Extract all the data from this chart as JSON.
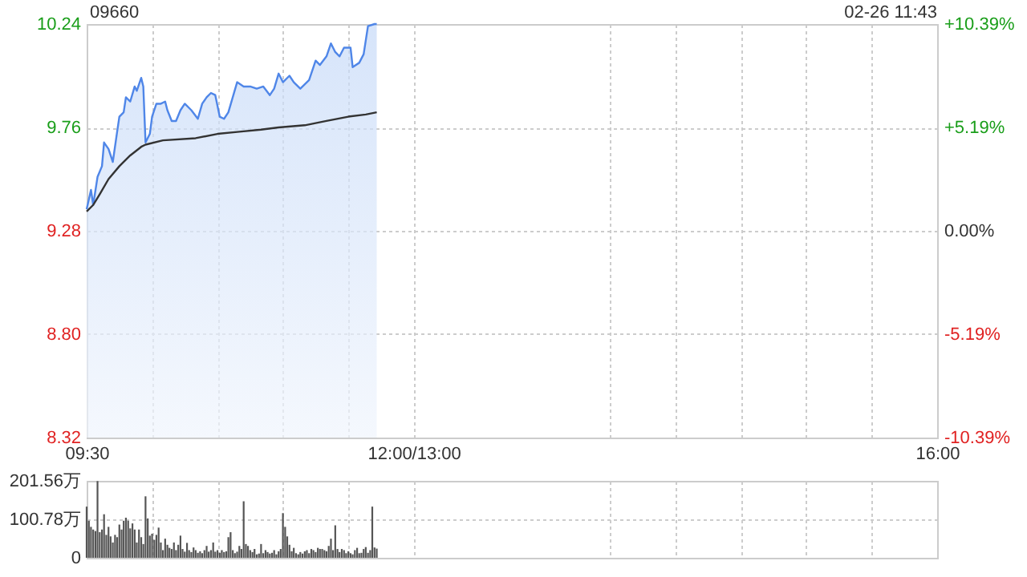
{
  "chart_data": [
    {
      "type": "line",
      "title": "09660",
      "annotations": [
        "02-26 11:43"
      ],
      "xlim": [
        9.5,
        16
      ],
      "xticks": [
        {
          "value": 9.5,
          "label": "09:30"
        },
        {
          "value": 10,
          "label": null
        },
        {
          "value": 10.5,
          "label": null
        },
        {
          "value": 11,
          "label": null
        },
        {
          "value": 11.5,
          "label": null
        },
        {
          "value": 12,
          "label": "12:00/13:00"
        },
        {
          "value": 13.5,
          "label": null
        },
        {
          "value": 14,
          "label": null
        },
        {
          "value": 14.5,
          "label": null
        },
        {
          "value": 15,
          "label": null
        },
        {
          "value": 15.5,
          "label": null
        },
        {
          "value": 16,
          "label": "16:00"
        }
      ],
      "ylim": [
        8.32,
        10.24
      ],
      "yticks": [
        8.32,
        {
          "value": 8.8,
          "label": "8.80"
        },
        9.28,
        9.76,
        10.24
      ],
      "y2lim": [
        -10.39,
        10.39
      ],
      "y2ticks": [
        {
          "value": -10.39,
          "label": "-10.39%"
        },
        {
          "value": -5.19,
          "label": "-5.19%"
        },
        {
          "value": 0,
          "label": "0.00%"
        },
        {
          "value": 5.19,
          "label": "+5.19%"
        },
        {
          "value": 10.39,
          "label": "+10.39%"
        }
      ],
      "grid": true,
      "series": [
        {
          "type": "area",
          "color": "#4f86e8",
          "x": [
            9.5,
            9.533,
            9.55,
            9.583,
            9.617,
            9.633,
            9.667,
            9.7,
            9.733,
            9.75,
            9.783,
            9.8,
            9.833,
            9.867,
            9.883,
            9.917,
            9.933,
            9.95,
            9.983,
            10,
            10.033,
            10.067,
            10.1,
            10.117,
            10.15,
            10.183,
            10.217,
            10.25,
            10.3,
            10.35,
            10.383,
            10.417,
            10.45,
            10.483,
            10.517,
            10.55,
            10.583,
            10.65,
            10.7,
            10.75,
            10.8,
            10.85,
            10.9,
            10.933,
            10.967,
            11,
            11.05,
            11.083,
            11.133,
            11.2,
            11.25,
            11.283,
            11.333,
            11.367,
            11.4,
            11.433,
            11.467,
            11.517,
            11.533,
            11.583,
            11.617,
            11.65,
            11.7,
            11.717
          ],
          "values": [
            9.38,
            9.47,
            9.4,
            9.53,
            9.58,
            9.69,
            9.66,
            9.6,
            9.74,
            9.81,
            9.83,
            9.9,
            9.88,
            9.95,
            9.93,
            9.99,
            9.95,
            9.69,
            9.73,
            9.81,
            9.87,
            9.87,
            9.88,
            9.84,
            9.79,
            9.79,
            9.84,
            9.87,
            9.84,
            9.8,
            9.87,
            9.9,
            9.92,
            9.91,
            9.81,
            9.8,
            9.83,
            9.97,
            9.95,
            9.95,
            9.94,
            9.95,
            9.91,
            9.94,
            10.01,
            9.97,
            10.0,
            9.97,
            9.94,
            9.98,
            10.07,
            10.05,
            10.09,
            10.15,
            10.11,
            10.09,
            10.13,
            10.13,
            10.04,
            10.06,
            10.1,
            10.23,
            10.24,
            10.24
          ]
        },
        {
          "type": "line",
          "color": "#333333",
          "x": [
            9.5,
            9.55,
            9.6,
            9.667,
            9.75,
            9.833,
            9.917,
            9.95,
            10.083,
            10.333,
            10.5,
            10.667,
            10.833,
            10.967,
            11.167,
            11.333,
            11.5,
            11.633,
            11.717
          ],
          "values": [
            9.37,
            9.4,
            9.45,
            9.52,
            9.58,
            9.63,
            9.67,
            9.68,
            9.7,
            9.71,
            9.73,
            9.74,
            9.75,
            9.76,
            9.77,
            9.79,
            9.81,
            9.82,
            9.83
          ]
        }
      ]
    },
    {
      "type": "bar",
      "color": "#555555",
      "tick_labels": "y",
      "grid": true,
      "xlim": [
        9.5,
        16
      ],
      "xticks": [
        9.5,
        10,
        10.5,
        11,
        11.5,
        12,
        13.5,
        14,
        14.5,
        15,
        15.5,
        16
      ],
      "ylim": [
        0,
        201.56
      ],
      "yticks": [
        {
          "value": 0,
          "label": "0"
        },
        {
          "value": 100.78,
          "label": "100.78万"
        },
        {
          "value": 201.56,
          "label": "201.56万"
        }
      ],
      "x": [
        9.5,
        9.517,
        9.533,
        9.55,
        9.567,
        9.583,
        9.6,
        9.617,
        9.633,
        9.65,
        9.667,
        9.683,
        9.7,
        9.717,
        9.733,
        9.75,
        9.767,
        9.783,
        9.8,
        9.817,
        9.833,
        9.85,
        9.867,
        9.883,
        9.9,
        9.917,
        9.933,
        9.95,
        9.967,
        9.983,
        10,
        10.017,
        10.033,
        10.05,
        10.067,
        10.083,
        10.1,
        10.117,
        10.133,
        10.15,
        10.167,
        10.183,
        10.2,
        10.217,
        10.233,
        10.25,
        10.267,
        10.283,
        10.3,
        10.317,
        10.333,
        10.35,
        10.367,
        10.383,
        10.4,
        10.417,
        10.433,
        10.45,
        10.467,
        10.483,
        10.5,
        10.517,
        10.533,
        10.55,
        10.567,
        10.583,
        10.6,
        10.617,
        10.633,
        10.65,
        10.667,
        10.683,
        10.7,
        10.717,
        10.733,
        10.75,
        10.767,
        10.783,
        10.8,
        10.817,
        10.833,
        10.85,
        10.867,
        10.883,
        10.9,
        10.917,
        10.933,
        10.95,
        10.967,
        10.983,
        11,
        11.017,
        11.033,
        11.05,
        11.067,
        11.083,
        11.1,
        11.117,
        11.133,
        11.15,
        11.167,
        11.183,
        11.2,
        11.217,
        11.233,
        11.25,
        11.267,
        11.283,
        11.3,
        11.317,
        11.333,
        11.35,
        11.367,
        11.383,
        11.4,
        11.417,
        11.433,
        11.45,
        11.467,
        11.483,
        11.5,
        11.517,
        11.533,
        11.55,
        11.567,
        11.583,
        11.6,
        11.617,
        11.633,
        11.65,
        11.667,
        11.683,
        11.7,
        11.717
      ],
      "values": [
        134,
        97,
        81,
        74,
        70,
        201,
        67,
        74,
        114,
        60,
        81,
        56,
        40,
        60,
        54,
        87,
        74,
        97,
        105,
        97,
        77,
        90,
        74,
        40,
        74,
        54,
        36,
        161,
        103,
        58,
        63,
        47,
        60,
        79,
        40,
        20,
        50,
        34,
        26,
        23,
        40,
        20,
        34,
        58,
        23,
        16,
        39,
        20,
        15,
        27,
        20,
        13,
        17,
        12,
        20,
        31,
        16,
        20,
        40,
        16,
        20,
        13,
        20,
        15,
        17,
        54,
        67,
        20,
        12,
        16,
        31,
        23,
        148,
        36,
        31,
        20,
        15,
        23,
        9,
        11,
        36,
        12,
        20,
        15,
        11,
        13,
        20,
        9,
        17,
        23,
        117,
        81,
        56,
        34,
        17,
        26,
        12,
        9,
        15,
        11,
        17,
        20,
        12,
        23,
        20,
        15,
        26,
        23,
        23,
        20,
        17,
        31,
        50,
        20,
        85,
        23,
        15,
        23,
        20,
        12,
        17,
        12,
        9,
        20,
        26,
        12,
        13,
        23,
        28,
        13,
        20,
        134,
        27,
        24
      ]
    }
  ]
}
